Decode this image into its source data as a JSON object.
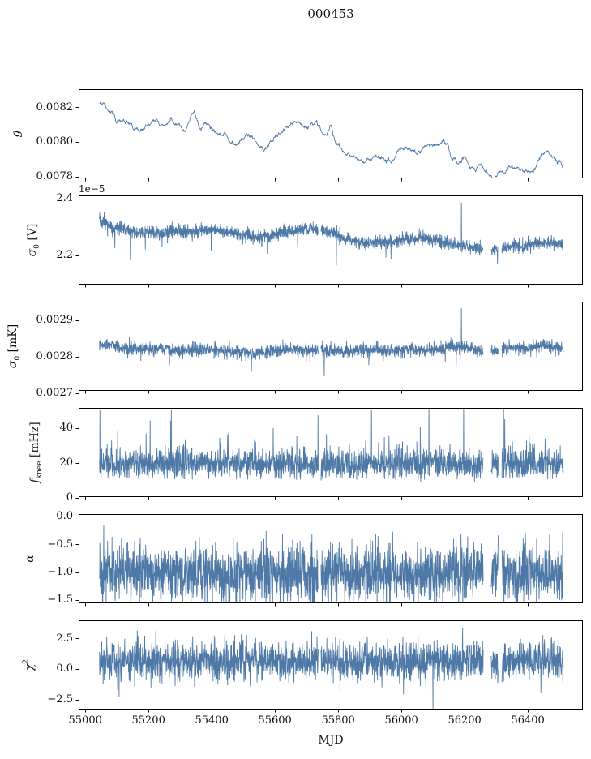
{
  "chart_data": {
    "type": "line",
    "title": "000453",
    "xlabel": "MJD",
    "line_color": "#4e79a7",
    "axis_color": "#000000",
    "x_range": [
      54979,
      56574
    ],
    "data_x_range": [
      55045,
      56512
    ],
    "x_ticks": [
      {
        "v": 55000,
        "l": "55000"
      },
      {
        "v": 55200,
        "l": "55200"
      },
      {
        "v": 55400,
        "l": "55400"
      },
      {
        "v": 55600,
        "l": "55600"
      },
      {
        "v": 55800,
        "l": "55800"
      },
      {
        "v": 56000,
        "l": "56000"
      },
      {
        "v": 56200,
        "l": "56200"
      },
      {
        "v": 56400,
        "l": "56400"
      }
    ],
    "gaps": [
      [
        55737,
        55745
      ],
      [
        56259,
        56284
      ],
      [
        56306,
        56318
      ]
    ],
    "subplots": [
      {
        "id": "g",
        "ylabel_parts": [
          {
            "t": "g",
            "s": "i"
          }
        ],
        "offset_text": "",
        "ylim": [
          0.00779,
          0.008303
        ],
        "yticks": [
          {
            "v": 0.0082,
            "l": "0.0082"
          },
          {
            "v": 0.008,
            "l": "0.0080"
          },
          {
            "v": 0.0078,
            "l": "0.0078"
          }
        ],
        "style": "walk",
        "points": 1467,
        "seed": 7,
        "noise": 4.5e-06,
        "jitter": 1.2e-06,
        "persist": 0.96,
        "use_gaps": false,
        "spikes": [],
        "trend": [
          [
            55045,
            0.00822
          ],
          [
            55060,
            0.00823
          ],
          [
            55080,
            0.00817
          ],
          [
            55105,
            0.00813
          ],
          [
            55140,
            0.00811
          ],
          [
            55175,
            0.00807
          ],
          [
            55205,
            0.0081
          ],
          [
            55245,
            0.0081
          ],
          [
            55285,
            0.0081
          ],
          [
            55315,
            0.00807
          ],
          [
            55345,
            0.00817
          ],
          [
            55362,
            0.00809
          ],
          [
            55385,
            0.00813
          ],
          [
            55405,
            0.00807
          ],
          [
            55430,
            0.00804
          ],
          [
            55460,
            0.008
          ],
          [
            55485,
            0.00797
          ],
          [
            55510,
            0.00803
          ],
          [
            55535,
            0.008
          ],
          [
            55565,
            0.00795
          ],
          [
            55590,
            0.008
          ],
          [
            55615,
            0.00805
          ],
          [
            55640,
            0.00809
          ],
          [
            55665,
            0.0081
          ],
          [
            55690,
            0.00808
          ],
          [
            55715,
            0.0081
          ],
          [
            55740,
            0.00811
          ],
          [
            55762,
            0.00806
          ],
          [
            55778,
            0.00811
          ],
          [
            55795,
            0.008
          ],
          [
            55820,
            0.00797
          ],
          [
            55845,
            0.00792
          ],
          [
            55870,
            0.00793
          ],
          [
            55895,
            0.00791
          ],
          [
            55920,
            0.00793
          ],
          [
            55945,
            0.0079
          ],
          [
            55965,
            0.00788
          ],
          [
            55990,
            0.00793
          ],
          [
            56015,
            0.00796
          ],
          [
            56040,
            0.00794
          ],
          [
            56065,
            0.00797
          ],
          [
            56085,
            0.00799
          ],
          [
            56110,
            0.00797
          ],
          [
            56135,
            0.008
          ],
          [
            56160,
            0.00795
          ],
          [
            56180,
            0.0079
          ],
          [
            56200,
            0.00793
          ],
          [
            56215,
            0.00786
          ],
          [
            56235,
            0.00784
          ],
          [
            56255,
            0.00786
          ],
          [
            56275,
            0.00783
          ],
          [
            56295,
            0.00779
          ],
          [
            56315,
            0.00781
          ],
          [
            56340,
            0.00784
          ],
          [
            56365,
            0.00786
          ],
          [
            56385,
            0.00783
          ],
          [
            56405,
            0.00781
          ],
          [
            56425,
            0.00786
          ],
          [
            56445,
            0.00792
          ],
          [
            56465,
            0.00794
          ],
          [
            56485,
            0.00791
          ],
          [
            56500,
            0.00789
          ],
          [
            56512,
            0.00784
          ]
        ]
      },
      {
        "id": "sigma0-v",
        "ylabel_parts": [
          {
            "t": "σ",
            "s": "i"
          },
          {
            "t": "0",
            "s": "sub"
          },
          {
            "t": " [V]",
            "s": "n"
          }
        ],
        "offset_text": "1e−5",
        "ylim": [
          2.097,
          2.411
        ],
        "yticks": [
          {
            "v": 2.4,
            "l": "2.4"
          },
          {
            "v": 2.2,
            "l": "2.2"
          }
        ],
        "style": "noise",
        "points": 2300,
        "seed": 11,
        "noise": 0.011,
        "tail": {
          "dir": -1,
          "prob": 0.01,
          "base": 0.015,
          "amp": 0.035
        },
        "use_gaps": true,
        "spikes": [
          [
            56190,
            2.385
          ]
        ],
        "trend": [
          [
            55045,
            2.315
          ],
          [
            55070,
            2.31
          ],
          [
            55100,
            2.298
          ],
          [
            55130,
            2.288
          ],
          [
            55160,
            2.284
          ],
          [
            55200,
            2.283
          ],
          [
            55235,
            2.276
          ],
          [
            55270,
            2.282
          ],
          [
            55305,
            2.285
          ],
          [
            55340,
            2.284
          ],
          [
            55375,
            2.288
          ],
          [
            55410,
            2.292
          ],
          [
            55440,
            2.284
          ],
          [
            55475,
            2.276
          ],
          [
            55510,
            2.27
          ],
          [
            55545,
            2.264
          ],
          [
            55580,
            2.268
          ],
          [
            55615,
            2.278
          ],
          [
            55650,
            2.288
          ],
          [
            55685,
            2.294
          ],
          [
            55720,
            2.294
          ],
          [
            55755,
            2.288
          ],
          [
            55790,
            2.276
          ],
          [
            55825,
            2.258
          ],
          [
            55860,
            2.248
          ],
          [
            55895,
            2.242
          ],
          [
            55930,
            2.246
          ],
          [
            55965,
            2.25
          ],
          [
            56000,
            2.252
          ],
          [
            56035,
            2.258
          ],
          [
            56070,
            2.26
          ],
          [
            56105,
            2.252
          ],
          [
            56140,
            2.242
          ],
          [
            56175,
            2.238
          ],
          [
            56210,
            2.232
          ],
          [
            56245,
            2.224
          ],
          [
            56280,
            2.22
          ],
          [
            56315,
            2.226
          ],
          [
            56350,
            2.232
          ],
          [
            56385,
            2.236
          ],
          [
            56420,
            2.24
          ],
          [
            56455,
            2.244
          ],
          [
            56490,
            2.242
          ],
          [
            56512,
            2.238
          ]
        ]
      },
      {
        "id": "sigma0-mk",
        "ylabel_parts": [
          {
            "t": "σ",
            "s": "i"
          },
          {
            "t": "0",
            "s": "sub"
          },
          {
            "t": " [mK]",
            "s": "n"
          }
        ],
        "offset_text": "",
        "ylim": [
          0.002706,
          0.002951
        ],
        "yticks": [
          {
            "v": 0.0029,
            "l": "0.0029"
          },
          {
            "v": 0.0028,
            "l": "0.0028"
          },
          {
            "v": 0.0027,
            "l": "0.0027"
          }
        ],
        "style": "noise",
        "points": 2300,
        "seed": 13,
        "noise": 8.5e-06,
        "tail": {
          "dir": -1,
          "prob": 0.01,
          "base": 1e-05,
          "amp": 2.5e-05
        },
        "use_gaps": true,
        "spikes": [
          [
            56190,
            0.002933
          ]
        ],
        "trend": [
          [
            55045,
            0.002835
          ],
          [
            55080,
            0.002832
          ],
          [
            55120,
            0.002825
          ],
          [
            55160,
            0.002823
          ],
          [
            55200,
            0.00282
          ],
          [
            55240,
            0.002822
          ],
          [
            55280,
            0.002818
          ],
          [
            55320,
            0.002818
          ],
          [
            55360,
            0.00282
          ],
          [
            55400,
            0.002822
          ],
          [
            55440,
            0.002818
          ],
          [
            55480,
            0.002812
          ],
          [
            55520,
            0.00281
          ],
          [
            55560,
            0.002812
          ],
          [
            55600,
            0.002818
          ],
          [
            55640,
            0.00282
          ],
          [
            55680,
            0.00282
          ],
          [
            55720,
            0.00282
          ],
          [
            55760,
            0.002818
          ],
          [
            55800,
            0.002818
          ],
          [
            55840,
            0.002815
          ],
          [
            55880,
            0.002818
          ],
          [
            55920,
            0.002818
          ],
          [
            55960,
            0.002815
          ],
          [
            56000,
            0.002818
          ],
          [
            56040,
            0.00282
          ],
          [
            56080,
            0.002818
          ],
          [
            56120,
            0.002822
          ],
          [
            56160,
            0.002828
          ],
          [
            56190,
            0.00283
          ],
          [
            56220,
            0.00282
          ],
          [
            56250,
            0.002815
          ],
          [
            56280,
            0.002812
          ],
          [
            56310,
            0.00282
          ],
          [
            56340,
            0.002828
          ],
          [
            56370,
            0.002822
          ],
          [
            56400,
            0.00282
          ],
          [
            56430,
            0.002828
          ],
          [
            56460,
            0.002832
          ],
          [
            56490,
            0.002825
          ],
          [
            56512,
            0.002822
          ]
        ]
      },
      {
        "id": "fknee",
        "ylabel_parts": [
          {
            "t": "f",
            "s": "i"
          },
          {
            "t": "knee",
            "s": "sub"
          },
          {
            "t": " [mHz]",
            "s": "n"
          }
        ],
        "offset_text": "",
        "ylim": [
          0.4,
          51.4
        ],
        "yticks": [
          {
            "v": 40,
            "l": "40"
          },
          {
            "v": 20,
            "l": "20"
          },
          {
            "v": 0,
            "l": "0"
          }
        ],
        "style": "noise",
        "points": 2300,
        "seed": 17,
        "noise": 4.2,
        "floor": 11.5,
        "floor_k": 0.3,
        "tail": {
          "dir": 1,
          "prob": 0.05,
          "base": 2,
          "amp": 6
        },
        "use_gaps": true,
        "spikes": [
          [
            55046,
            50
          ],
          [
            55205,
            44
          ],
          [
            55272,
            50
          ],
          [
            55450,
            36
          ],
          [
            55550,
            34
          ],
          [
            55669,
            35
          ],
          [
            55736,
            47
          ],
          [
            55905,
            50
          ],
          [
            56087,
            52
          ],
          [
            56197,
            52
          ],
          [
            56323,
            52
          ]
        ],
        "trend": [
          [
            55045,
            19
          ],
          [
            55200,
            19
          ],
          [
            55400,
            20
          ],
          [
            55600,
            19
          ],
          [
            55800,
            18.5
          ],
          [
            56000,
            19
          ],
          [
            56100,
            19.5
          ],
          [
            56200,
            19
          ],
          [
            56300,
            18.5
          ],
          [
            56400,
            19
          ],
          [
            56512,
            19
          ]
        ]
      },
      {
        "id": "alpha",
        "ylabel_parts": [
          {
            "t": "α",
            "s": "i"
          }
        ],
        "offset_text": "",
        "ylim": [
          -1.56,
          0.04
        ],
        "yticks": [
          {
            "v": 0.0,
            "l": "0.0"
          },
          {
            "v": -0.5,
            "l": "−0.5"
          },
          {
            "v": -1.0,
            "l": "−1.0"
          },
          {
            "v": -1.5,
            "l": "−1.5"
          }
        ],
        "style": "noise",
        "points": 2300,
        "seed": 19,
        "noise": 0.25,
        "tail": {
          "dir": 1,
          "prob": 0.006,
          "base": 0.2,
          "amp": 0.15
        },
        "use_gaps": true,
        "spikes": [],
        "trend": [
          [
            55045,
            -1.01
          ],
          [
            55400,
            -1.03
          ],
          [
            55800,
            -1.04
          ],
          [
            56100,
            -1.02
          ],
          [
            56512,
            -1.03
          ]
        ]
      },
      {
        "id": "chi2",
        "ylabel_parts": [
          {
            "t": "χ",
            "s": "i"
          },
          {
            "t": "2",
            "s": "sup"
          }
        ],
        "offset_text": "",
        "ylim": [
          -3.3,
          3.95
        ],
        "yticks": [
          {
            "v": 2.5,
            "l": "2.5"
          },
          {
            "v": 0.0,
            "l": "0.0"
          },
          {
            "v": -2.5,
            "l": "−2.5"
          }
        ],
        "style": "noise",
        "points": 2300,
        "seed": 23,
        "noise": 0.78,
        "use_gaps": true,
        "spikes": [
          [
            56100,
            -3.25
          ]
        ],
        "trend": [
          [
            55045,
            0.62
          ],
          [
            55400,
            0.65
          ],
          [
            55800,
            0.6
          ],
          [
            56100,
            0.62
          ],
          [
            56512,
            0.62
          ]
        ]
      }
    ]
  }
}
